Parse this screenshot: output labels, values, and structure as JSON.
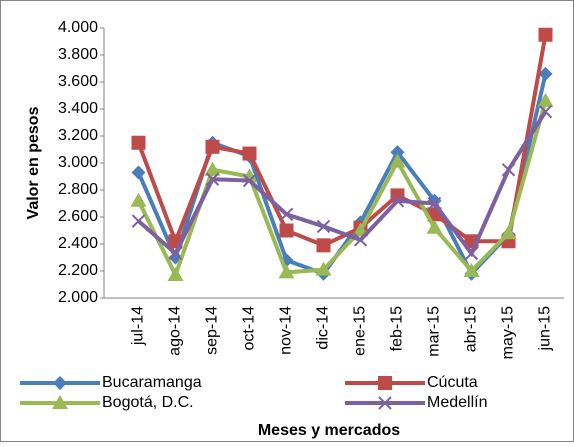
{
  "chart_data": {
    "type": "line",
    "y_label": "Valor en pesos",
    "x_label": "Meses y mercados",
    "categories": [
      "jul-14",
      "ago-14",
      "sep-14",
      "oct-14",
      "nov-14",
      "dic-14",
      "ene-15",
      "feb-15",
      "mar-15",
      "abr-15",
      "may-15",
      "jun-15"
    ],
    "series": [
      {
        "name": "Bucaramanga",
        "color": "#4a7ebb",
        "marker": "diamond",
        "values": [
          2930,
          2300,
          3150,
          3050,
          2280,
          2180,
          2560,
          3080,
          2720,
          2180,
          2470,
          3660
        ]
      },
      {
        "name": "Cúcuta",
        "color": "#be4b48",
        "marker": "square",
        "values": [
          3150,
          2420,
          3120,
          3070,
          2500,
          2390,
          2520,
          2760,
          2620,
          2420,
          2420,
          3950
        ]
      },
      {
        "name": "Bogotá, D.C.",
        "color": "#98b954",
        "marker": "triangle",
        "values": [
          2720,
          2170,
          2950,
          2900,
          2190,
          2210,
          2500,
          3010,
          2520,
          2200,
          2480,
          3460
        ]
      },
      {
        "name": "Medellín",
        "color": "#7d60a0",
        "marker": "x",
        "values": [
          2570,
          2330,
          2880,
          2870,
          2620,
          2530,
          2430,
          2720,
          2700,
          2330,
          2950,
          3380
        ]
      }
    ],
    "ylim": [
      2000,
      4000
    ],
    "yticks": [
      {
        "value": 2000,
        "label": "2.000"
      },
      {
        "value": 2200,
        "label": "2.200"
      },
      {
        "value": 2400,
        "label": "2.400"
      },
      {
        "value": 2600,
        "label": "2.600"
      },
      {
        "value": 2800,
        "label": "2.800"
      },
      {
        "value": 3000,
        "label": "3.000"
      },
      {
        "value": 3200,
        "label": "3.200"
      },
      {
        "value": 3400,
        "label": "3.400"
      },
      {
        "value": 3600,
        "label": "3.600"
      },
      {
        "value": 3800,
        "label": "3.800"
      },
      {
        "value": 4000,
        "label": "4.000"
      }
    ],
    "grid": false,
    "legend": "bottom"
  }
}
